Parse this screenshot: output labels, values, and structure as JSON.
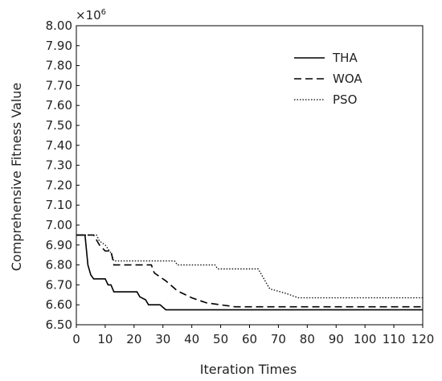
{
  "chart_data": {
    "type": "line",
    "title": "",
    "xlabel": "Iteration Times",
    "ylabel": "Comprehensive Fitness Value",
    "y_multiplier": "×10",
    "y_multiplier_exp": "6",
    "xlim": [
      0,
      120
    ],
    "ylim": [
      6.5,
      8.0
    ],
    "x_ticks": [
      "0",
      "10",
      "20",
      "30",
      "40",
      "50",
      "60",
      "70",
      "80",
      "90",
      "100",
      "110",
      "120"
    ],
    "y_ticks": [
      "6.50",
      "6.60",
      "6.70",
      "6.80",
      "6.90",
      "7.00",
      "7.10",
      "7.20",
      "7.30",
      "7.40",
      "7.50",
      "7.60",
      "7.70",
      "7.80",
      "7.90",
      "8.00"
    ],
    "grid": false,
    "legend_position": "top-right",
    "series": [
      {
        "name": "THA",
        "style": "solid",
        "color": "#000000",
        "points": [
          [
            0,
            6.95
          ],
          [
            3,
            6.95
          ],
          [
            4,
            6.8
          ],
          [
            5,
            6.75
          ],
          [
            6,
            6.73
          ],
          [
            10,
            6.73
          ],
          [
            11,
            6.7
          ],
          [
            12,
            6.7
          ],
          [
            13,
            6.665
          ],
          [
            21,
            6.665
          ],
          [
            22,
            6.64
          ],
          [
            24,
            6.625
          ],
          [
            25,
            6.6
          ],
          [
            29,
            6.6
          ],
          [
            31,
            6.575
          ],
          [
            120,
            6.575
          ]
        ]
      },
      {
        "name": "WOA",
        "style": "dashed",
        "color": "#000000",
        "points": [
          [
            0,
            6.95
          ],
          [
            6,
            6.95
          ],
          [
            8,
            6.9
          ],
          [
            10,
            6.87
          ],
          [
            12,
            6.87
          ],
          [
            13,
            6.8
          ],
          [
            26,
            6.8
          ],
          [
            27,
            6.76
          ],
          [
            29,
            6.74
          ],
          [
            31,
            6.72
          ],
          [
            35,
            6.67
          ],
          [
            40,
            6.635
          ],
          [
            45,
            6.61
          ],
          [
            50,
            6.6
          ],
          [
            55,
            6.59
          ],
          [
            120,
            6.59
          ]
        ]
      },
      {
        "name": "PSO",
        "style": "dotted",
        "color": "#000000",
        "points": [
          [
            0,
            6.95
          ],
          [
            7,
            6.95
          ],
          [
            8,
            6.92
          ],
          [
            10,
            6.9
          ],
          [
            12,
            6.86
          ],
          [
            13,
            6.82
          ],
          [
            34,
            6.82
          ],
          [
            35,
            6.8
          ],
          [
            48,
            6.8
          ],
          [
            49,
            6.78
          ],
          [
            63,
            6.78
          ],
          [
            67,
            6.68
          ],
          [
            72,
            6.66
          ],
          [
            77,
            6.635
          ],
          [
            120,
            6.635
          ]
        ]
      }
    ]
  }
}
